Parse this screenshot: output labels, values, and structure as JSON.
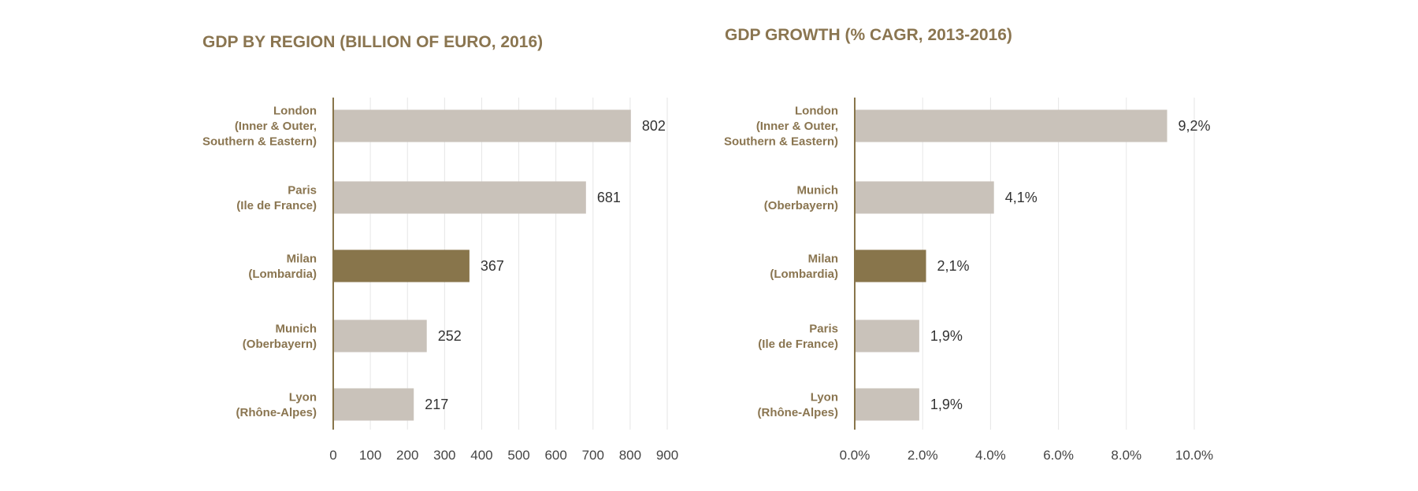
{
  "colors": {
    "default_bar": "#c9c2ba",
    "highlight_bar": "#88754b",
    "axis": "#88754b",
    "grid": "#e6e6e6",
    "category_text": "#8a7550",
    "value_text": "#333333"
  },
  "chart_data": [
    {
      "type": "bar",
      "orientation": "horizontal",
      "title": "GDP BY REGION (BILLION OF EURO, 2016)",
      "categories": [
        [
          "London",
          "(Inner & Outer,",
          "Southern & Eastern)"
        ],
        [
          "Paris",
          "(Ile de France)"
        ],
        [
          "Milan",
          "(Lombardia)"
        ],
        [
          "Munich",
          "(Oberbayern)"
        ],
        [
          "Lyon",
          "(Rhône-Alpes)"
        ]
      ],
      "values": [
        802,
        681,
        367,
        252,
        217
      ],
      "value_labels": [
        "802",
        "681",
        "367",
        "252",
        "217"
      ],
      "highlight": "Milan",
      "xlim": [
        0,
        900
      ],
      "xticks": [
        0,
        100,
        200,
        300,
        400,
        500,
        600,
        700,
        800,
        900
      ],
      "xtick_labels": [
        "0",
        "100",
        "200",
        "300",
        "400",
        "500",
        "600",
        "700",
        "800",
        "900"
      ],
      "grid": true,
      "legend": "none"
    },
    {
      "type": "bar",
      "orientation": "horizontal",
      "title": "GDP GROWTH (% CAGR, 2013-2016)",
      "categories": [
        [
          "London",
          "(Inner & Outer,",
          "Southern & Eastern)"
        ],
        [
          "Munich",
          "(Oberbayern)"
        ],
        [
          "Milan",
          "(Lombardia)"
        ],
        [
          "Paris",
          "(Ile de France)"
        ],
        [
          "Lyon",
          "(Rhône-Alpes)"
        ]
      ],
      "values": [
        9.2,
        4.1,
        2.1,
        1.9,
        1.9
      ],
      "value_labels": [
        "9,2%",
        "4,1%",
        "2,1%",
        "1,9%",
        "1,9%"
      ],
      "highlight": "Milan",
      "xlim": [
        0,
        10
      ],
      "xticks": [
        0,
        2,
        4,
        6,
        8,
        10
      ],
      "xtick_labels": [
        "0.0%",
        "2.0%",
        "4.0%",
        "6.0%",
        "8.0%",
        "10.0%"
      ],
      "grid": true,
      "legend": "none"
    }
  ]
}
